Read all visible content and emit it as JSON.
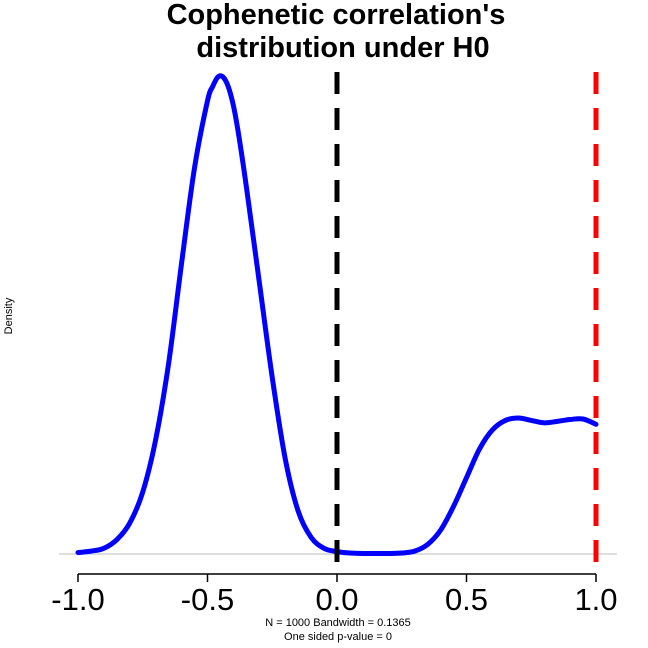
{
  "chart_data": {
    "type": "line",
    "title_lines": [
      "Cophenetic correlation's",
      "distribution under H0"
    ],
    "xlabel_lines": [
      "N = 1000   Bandwidth = 0.1365",
      "One sided p-value = 0"
    ],
    "ylabel": "Density",
    "xlim": [
      -1.05,
      1.05
    ],
    "xticks": [
      -1.0,
      -0.5,
      0.0,
      0.5,
      1.0
    ],
    "xtick_labels": [
      "-1.0",
      "-0.5",
      "0.0",
      "0.5",
      "1.0"
    ],
    "yaxis_ticks_shown": false,
    "baseline_y": 0,
    "series": [
      {
        "color": "#0000ff",
        "x": [
          -1.0,
          -0.95,
          -0.9,
          -0.85,
          -0.8,
          -0.75,
          -0.7,
          -0.65,
          -0.6,
          -0.55,
          -0.5,
          -0.48,
          -0.46,
          -0.44,
          -0.42,
          -0.4,
          -0.38,
          -0.35,
          -0.3,
          -0.25,
          -0.2,
          -0.15,
          -0.1,
          -0.05,
          0.0,
          0.05,
          0.1,
          0.15,
          0.2,
          0.25,
          0.3,
          0.35,
          0.4,
          0.45,
          0.5,
          0.55,
          0.6,
          0.65,
          0.7,
          0.75,
          0.8,
          0.85,
          0.9,
          0.95,
          1.0
        ],
        "y": [
          0.003,
          0.006,
          0.012,
          0.03,
          0.065,
          0.13,
          0.24,
          0.4,
          0.61,
          0.81,
          0.95,
          0.98,
          1.0,
          1.0,
          0.98,
          0.94,
          0.88,
          0.77,
          0.57,
          0.37,
          0.2,
          0.09,
          0.035,
          0.012,
          0.005,
          0.002,
          0.001,
          0.001,
          0.001,
          0.002,
          0.006,
          0.02,
          0.05,
          0.1,
          0.16,
          0.22,
          0.26,
          0.28,
          0.285,
          0.28,
          0.275,
          0.278,
          0.282,
          0.283,
          0.272
        ]
      }
    ],
    "reference_lines": [
      {
        "x": 0.0,
        "color": "#000000",
        "style": "dashed"
      },
      {
        "x": 1.0,
        "color": "#ff0000",
        "style": "dashed"
      }
    ],
    "grid": false,
    "legend": "none"
  }
}
